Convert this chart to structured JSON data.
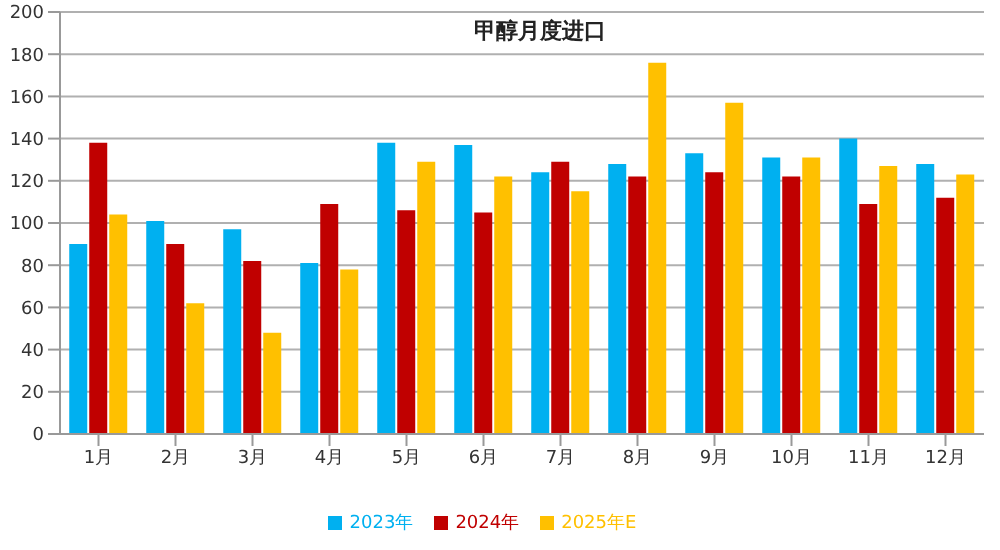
{
  "chart_data": {
    "type": "bar",
    "title": "甲醇月度进口",
    "categories": [
      "1月",
      "2月",
      "3月",
      "4月",
      "5月",
      "6月",
      "7月",
      "8月",
      "9月",
      "10月",
      "11月",
      "12月"
    ],
    "series": [
      {
        "name": "2023年",
        "color": "#00b0f0",
        "values": [
          90,
          101,
          97,
          81,
          138,
          137,
          124,
          128,
          133,
          131,
          140,
          128
        ]
      },
      {
        "name": "2024年",
        "color": "#c00000",
        "values": [
          138,
          90,
          82,
          109,
          106,
          105,
          129,
          122,
          124,
          122,
          109,
          112
        ]
      },
      {
        "name": "2025年E",
        "color": "#ffc000",
        "values": [
          104,
          62,
          48,
          78,
          129,
          122,
          115,
          176,
          157,
          131,
          127,
          123
        ]
      }
    ],
    "ylim": [
      0,
      200
    ],
    "yticks": [
      0,
      20,
      40,
      60,
      80,
      100,
      120,
      140,
      160,
      180,
      200
    ],
    "grid": "y",
    "legend": "bottom"
  }
}
